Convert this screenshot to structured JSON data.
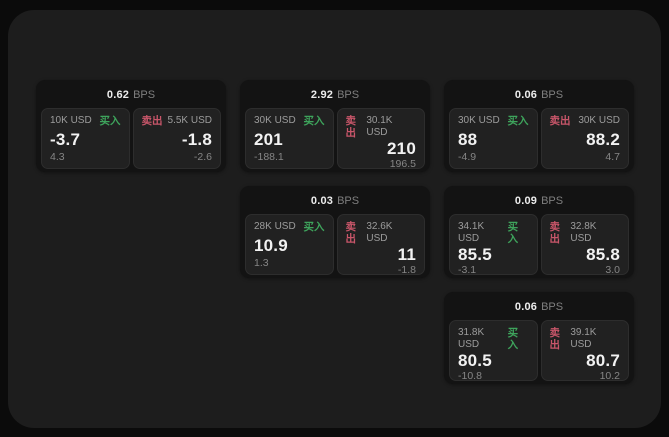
{
  "colors": {
    "backdrop": "#0b0b0b",
    "window_bg": "#1d1d1d",
    "card_bg": "#131313",
    "panel_bg": "#212121",
    "buy_green": "#3ea45c",
    "sell_red": "#c9566a",
    "primary_text": "#f2f2f2",
    "muted_text": "#9c9c9c"
  },
  "cards": [
    {
      "bps_value": "0.62",
      "bps_unit": "BPS",
      "buy": {
        "amount": "10K USD",
        "side_label": "买入",
        "price": "-3.7",
        "delta": "4.3"
      },
      "sell": {
        "amount": "5.5K USD",
        "side_label": "卖出",
        "price": "-1.8",
        "delta": "-2.6"
      }
    },
    {
      "bps_value": "2.92",
      "bps_unit": "BPS",
      "buy": {
        "amount": "30K USD",
        "side_label": "买入",
        "price": "201",
        "delta": "-188.1"
      },
      "sell": {
        "amount": "30.1K USD",
        "side_label": "卖出",
        "price": "210",
        "delta": "196.5"
      }
    },
    {
      "bps_value": "0.06",
      "bps_unit": "BPS",
      "buy": {
        "amount": "30K USD",
        "side_label": "买入",
        "price": "88",
        "delta": "-4.9"
      },
      "sell": {
        "amount": "30K USD",
        "side_label": "卖出",
        "price": "88.2",
        "delta": "4.7"
      }
    },
    {
      "bps_value": "0.03",
      "bps_unit": "BPS",
      "buy": {
        "amount": "28K USD",
        "side_label": "买入",
        "price": "10.9",
        "delta": "1.3"
      },
      "sell": {
        "amount": "32.6K USD",
        "side_label": "卖出",
        "price": "11",
        "delta": "-1.8"
      }
    },
    {
      "bps_value": "0.09",
      "bps_unit": "BPS",
      "buy": {
        "amount": "34.1K USD",
        "side_label": "买入",
        "price": "85.5",
        "delta": "-3.1"
      },
      "sell": {
        "amount": "32.8K USD",
        "side_label": "卖出",
        "price": "85.8",
        "delta": "3.0"
      }
    },
    {
      "bps_value": "0.06",
      "bps_unit": "BPS",
      "buy": {
        "amount": "31.8K USD",
        "side_label": "买入",
        "price": "80.5",
        "delta": "-10.8"
      },
      "sell": {
        "amount": "39.1K USD",
        "side_label": "卖出",
        "price": "80.7",
        "delta": "10.2"
      }
    }
  ]
}
